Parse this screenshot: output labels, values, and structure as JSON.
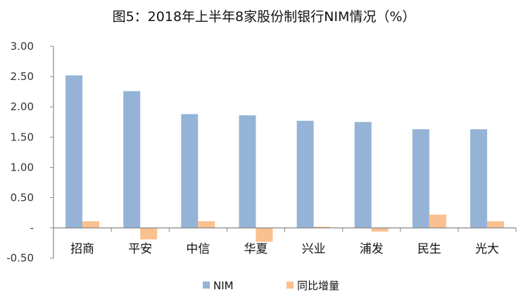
{
  "chart_data": {
    "type": "bar",
    "title": "图5：2018年上半年8家股份制银行NIM情况（%）",
    "xlabel": "",
    "ylabel": "",
    "ylim": [
      -0.5,
      3.0
    ],
    "yticks": [
      3.0,
      2.5,
      2.0,
      1.5,
      1.0,
      0.5,
      0,
      -0.5
    ],
    "ytick_labels": [
      "3.00",
      "2.50",
      "2.00",
      "1.50",
      "1.00",
      "0.50",
      "-",
      "-0.50"
    ],
    "categories": [
      "招商",
      "平安",
      "中信",
      "华夏",
      "兴业",
      "浦发",
      "民生",
      "光大"
    ],
    "series": [
      {
        "name": "NIM",
        "color": "#95b3d7",
        "values": [
          2.52,
          2.26,
          1.88,
          1.86,
          1.77,
          1.75,
          1.63,
          1.63
        ]
      },
      {
        "name": "同比增量",
        "color": "#fac090",
        "values": [
          0.11,
          -0.19,
          0.11,
          -0.23,
          0.02,
          -0.06,
          0.22,
          0.11
        ]
      }
    ],
    "grid": false,
    "legend_position": "bottom"
  }
}
